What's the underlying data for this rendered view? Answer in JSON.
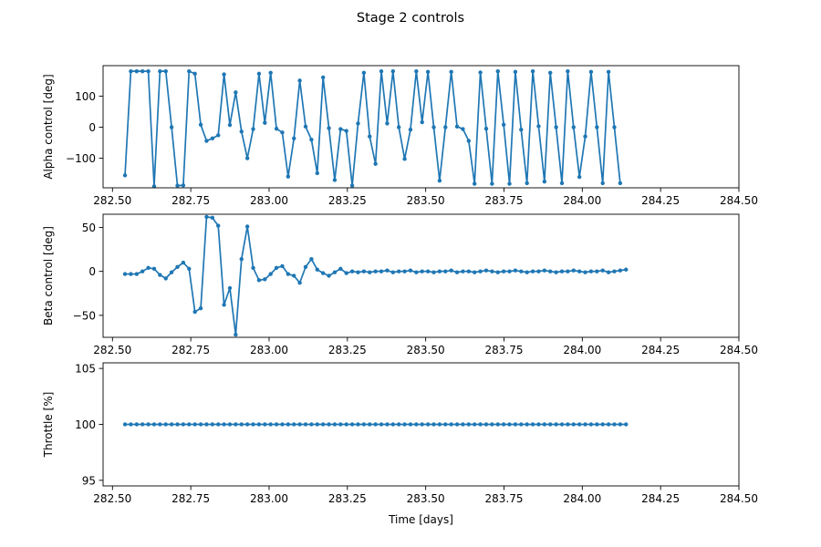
{
  "figure": {
    "title": "Stage 2 controls"
  },
  "chart_data": [
    {
      "type": "line",
      "title": "",
      "xlabel": "",
      "ylabel": "Alpha control [deg]",
      "xlim": [
        282.47,
        284.5
      ],
      "ylim": [
        -195,
        198
      ],
      "x_ticks": [
        282.5,
        282.75,
        283.0,
        283.25,
        283.5,
        283.75,
        284.0,
        284.25,
        284.5
      ],
      "x_tick_labels": [
        "282.50",
        "282.75",
        "283.00",
        "283.25",
        "283.50",
        "283.75",
        "284.00",
        "284.25",
        "284.50"
      ],
      "y_ticks": [
        -100,
        0,
        100
      ],
      "y_tick_labels": [
        "−100",
        "0",
        "100"
      ],
      "grid": false,
      "color": "#1f77b4",
      "series": [
        {
          "x_start": 282.54,
          "x_step": 0.0186,
          "values": [
            -155,
            180,
            180,
            180,
            180,
            -190,
            180,
            180,
            0,
            -188,
            -187,
            180,
            172,
            8,
            -44,
            -36,
            -26,
            170,
            7,
            112,
            -14,
            -100,
            -6,
            172,
            14,
            175,
            -5,
            -17,
            -159,
            -36,
            150,
            2,
            -40,
            -148,
            160,
            -3,
            -170,
            -6,
            -12,
            -188,
            12,
            175,
            -30,
            -118,
            180,
            12,
            180,
            0,
            -102,
            -8,
            180,
            16,
            178,
            0,
            -172,
            0,
            178,
            2,
            -6,
            -44,
            -182,
            176,
            -5,
            -182,
            180,
            8,
            -182,
            178,
            -8,
            -180,
            180,
            3,
            -175,
            175,
            0,
            -180,
            180,
            0,
            -160,
            -30,
            178,
            0,
            -180,
            178,
            0,
            -180
          ]
        }
      ]
    },
    {
      "type": "line",
      "title": "",
      "xlabel": "",
      "ylabel": "Beta control [deg]",
      "xlim": [
        282.47,
        284.5
      ],
      "ylim": [
        -75,
        65
      ],
      "x_ticks": [
        282.5,
        282.75,
        283.0,
        283.25,
        283.5,
        283.75,
        284.0,
        284.25,
        284.5
      ],
      "x_tick_labels": [
        "282.50",
        "282.75",
        "283.00",
        "283.25",
        "283.50",
        "283.75",
        "284.00",
        "284.25",
        "284.50"
      ],
      "y_ticks": [
        -50,
        0,
        50
      ],
      "y_tick_labels": [
        "−50",
        "0",
        "50"
      ],
      "grid": false,
      "color": "#1f77b4",
      "series": [
        {
          "x_start": 282.54,
          "x_step": 0.0186,
          "values": [
            -3,
            -3,
            -3,
            0,
            4,
            3,
            -4,
            -8,
            -1,
            5,
            10,
            3,
            -46,
            -42,
            62,
            61,
            52,
            -38,
            -19,
            -72,
            14,
            51,
            4,
            -10,
            -9,
            -3,
            4,
            6,
            -3,
            -5,
            -13,
            5,
            14,
            2,
            -2,
            -5,
            -1,
            3,
            -2,
            0,
            -1,
            0,
            -1,
            0,
            0,
            1,
            -1,
            0,
            0,
            1,
            -1,
            0,
            0,
            -1,
            0,
            0,
            1,
            -1,
            0,
            0,
            -1,
            0,
            1,
            0,
            -1,
            0,
            0,
            1,
            0,
            -1,
            0,
            0,
            1,
            0,
            -1,
            0,
            0,
            1,
            0,
            -1,
            0,
            0,
            1,
            -1,
            0,
            1,
            2
          ]
        }
      ]
    },
    {
      "type": "line",
      "title": "",
      "xlabel": "Time [days]",
      "ylabel": "Throttle [%]",
      "xlim": [
        282.47,
        284.5
      ],
      "ylim": [
        94.5,
        105.5
      ],
      "x_ticks": [
        282.5,
        282.75,
        283.0,
        283.25,
        283.5,
        283.75,
        284.0,
        284.25,
        284.5
      ],
      "x_tick_labels": [
        "282.50",
        "282.75",
        "283.00",
        "283.25",
        "283.50",
        "283.75",
        "284.00",
        "284.25",
        "284.50"
      ],
      "y_ticks": [
        95,
        100,
        105
      ],
      "y_tick_labels": [
        "95",
        "100",
        "105"
      ],
      "grid": false,
      "color": "#1f77b4",
      "series": [
        {
          "x_start": 282.54,
          "x_step": 0.0186,
          "constant": 100,
          "count": 87
        }
      ]
    }
  ]
}
